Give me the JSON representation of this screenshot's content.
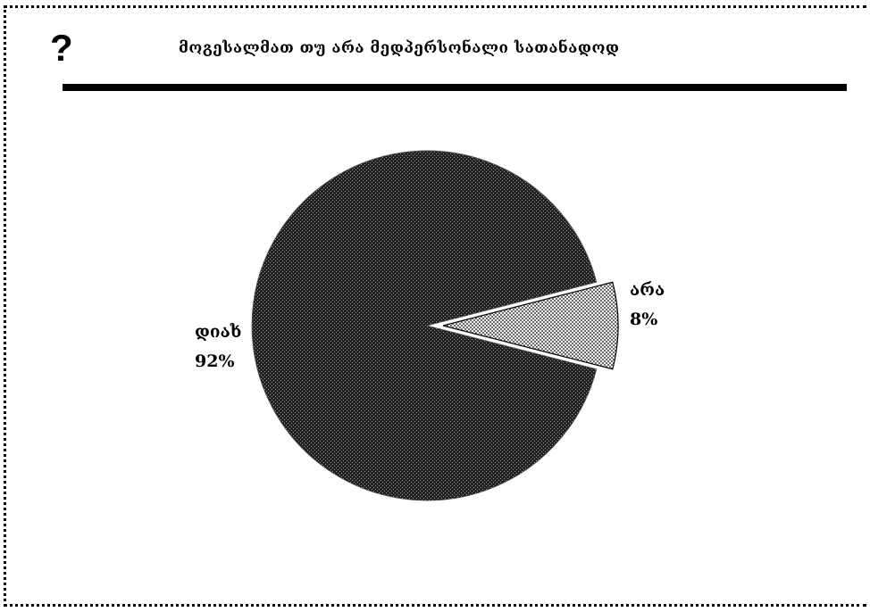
{
  "header": {
    "icon": "question-mark-icon",
    "title": "მოგესალმათ თუ არა მედპერსონალი სათანადოდ"
  },
  "chart_data": {
    "type": "pie",
    "title": "მოგესალმათ თუ არა მედპერსონალი სათანადოდ",
    "slices": [
      {
        "label": "დიახ",
        "value": 92,
        "display": "92%",
        "pattern": "dark-dots"
      },
      {
        "label": "არა",
        "value": 8,
        "display": "8%",
        "pattern": "light-checker",
        "exploded": true
      }
    ]
  }
}
